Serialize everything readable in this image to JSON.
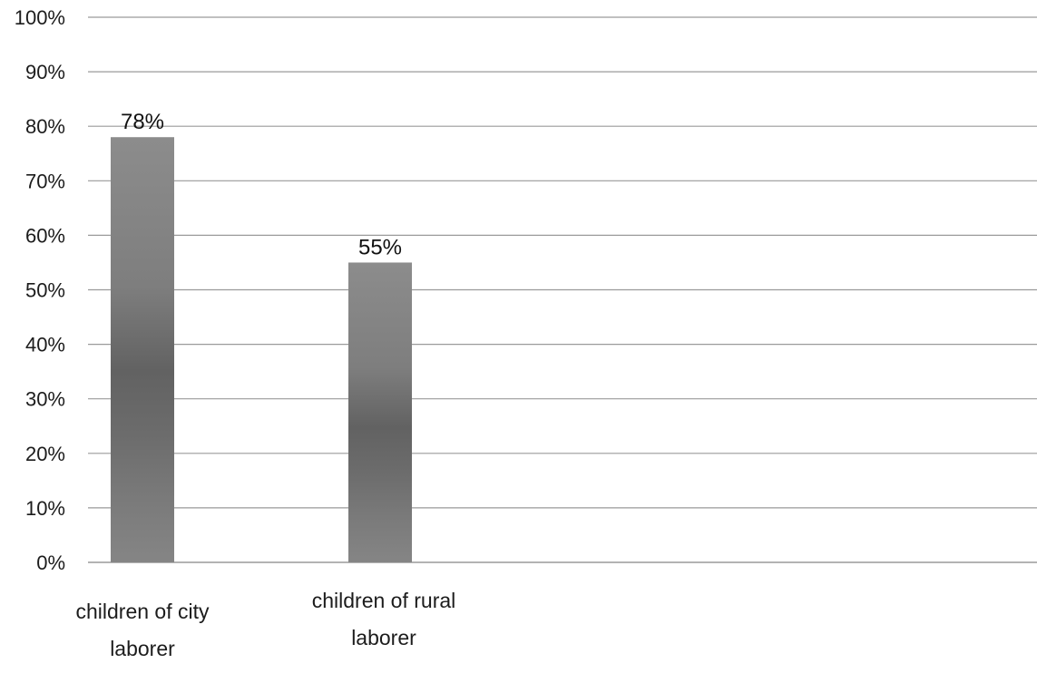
{
  "chart_data": {
    "type": "bar",
    "title": "",
    "xlabel": "",
    "ylabel": "",
    "categories": [
      [
        "children of city",
        "laborer"
      ],
      [
        "children of rural",
        "laborer"
      ]
    ],
    "values": [
      78,
      55
    ],
    "data_labels": [
      "78%",
      "55%"
    ],
    "ylim": [
      0,
      100
    ],
    "y_ticks": [
      {
        "value": 0,
        "label": "0%"
      },
      {
        "value": 10,
        "label": "10%"
      },
      {
        "value": 20,
        "label": "20%"
      },
      {
        "value": 30,
        "label": "30%"
      },
      {
        "value": 40,
        "label": "40%"
      },
      {
        "value": 50,
        "label": "50%"
      },
      {
        "value": 60,
        "label": "60%"
      },
      {
        "value": 70,
        "label": "70%"
      },
      {
        "value": 80,
        "label": "80%"
      },
      {
        "value": 90,
        "label": "90%"
      },
      {
        "value": 100,
        "label": "100%"
      }
    ],
    "grid": true,
    "legend": "none",
    "colors": {
      "bar_light": "#8a8a8a",
      "bar_dark": "#5f5f5f",
      "grid": "#9a9a9a",
      "text": "#1c1c1c"
    }
  }
}
